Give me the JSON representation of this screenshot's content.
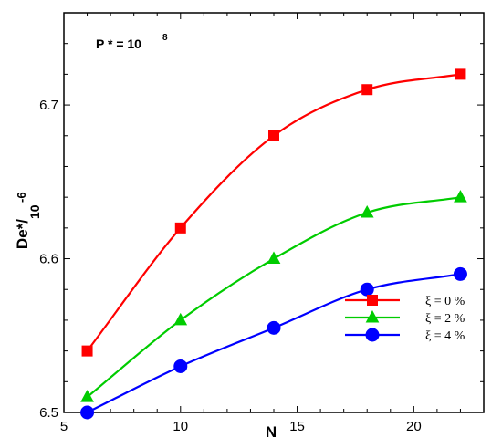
{
  "chart_data": {
    "type": "line",
    "xlabel": "N",
    "ylabel_main": "De*/",
    "ylabel_den": "10",
    "ylabel_exp": "-6",
    "annotation_main": "P * = 10",
    "annotation_exp": "8",
    "xlim": [
      5,
      23
    ],
    "ylim": [
      6.5,
      6.76
    ],
    "xticks": [
      5,
      10,
      15,
      20
    ],
    "yticks": [
      6.5,
      6.6,
      6.7
    ],
    "xtick_labels": [
      "5",
      "10",
      "15",
      "20"
    ],
    "ytick_labels": [
      "6.5",
      "6.6",
      "6.7"
    ],
    "grid": false,
    "legend_position": "bottom-right",
    "series": [
      {
        "name": "ξ = 0 %",
        "color": "#ff0000",
        "marker": "square",
        "x": [
          6,
          10,
          14,
          18,
          22
        ],
        "y": [
          6.54,
          6.62,
          6.68,
          6.71,
          6.72
        ]
      },
      {
        "name": "ξ = 2 %",
        "color": "#00cc00",
        "marker": "triangle",
        "x": [
          6,
          10,
          14,
          18,
          22
        ],
        "y": [
          6.51,
          6.56,
          6.6,
          6.63,
          6.64
        ]
      },
      {
        "name": "ξ = 4 %",
        "color": "#0000ff",
        "marker": "circle",
        "x": [
          6,
          10,
          14,
          18,
          22
        ],
        "y": [
          6.5,
          6.53,
          6.555,
          6.58,
          6.59
        ]
      }
    ]
  }
}
